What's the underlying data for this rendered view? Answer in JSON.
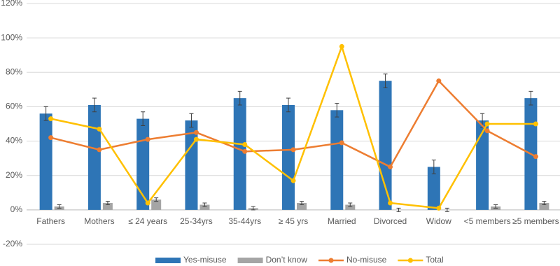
{
  "chart_data": {
    "type": "bar",
    "categories": [
      "Fathers",
      "Mothers",
      "≤ 24 years",
      "25-34yrs",
      "35-44yrs",
      "≥ 45 yrs",
      "Married",
      "Divorced",
      "Widow",
      "<5 members",
      "≥5 members"
    ],
    "series": [
      {
        "name": "Yes-misuse",
        "type": "bar",
        "color": "#2e75b6",
        "values": [
          56,
          61,
          53,
          52,
          65,
          61,
          58,
          75,
          25,
          52,
          65
        ],
        "errors": [
          4,
          4,
          4,
          4,
          4,
          4,
          4,
          4,
          4,
          4,
          4
        ]
      },
      {
        "name": "Don’t know",
        "type": "bar",
        "color": "#a5a5a5",
        "values": [
          2,
          4,
          6,
          3,
          1,
          4,
          3,
          0,
          0,
          2,
          4
        ],
        "errors": [
          1,
          1,
          1,
          1,
          1,
          1,
          1,
          1,
          1,
          1,
          1
        ]
      },
      {
        "name": "No-misuse",
        "type": "line",
        "color": "#ed7d31",
        "values": [
          42,
          35,
          41,
          45,
          34,
          35,
          39,
          25,
          75,
          46,
          31
        ]
      },
      {
        "name": "Total",
        "type": "line",
        "color": "#ffc000",
        "values": [
          53,
          47,
          4,
          41,
          38,
          17,
          95,
          4,
          1,
          50,
          50
        ]
      }
    ],
    "ylim": [
      -20,
      120
    ],
    "yticks": [
      {
        "value": -20,
        "label": "-20%"
      },
      {
        "value": 0,
        "label": "0%"
      },
      {
        "value": 20,
        "label": "20%"
      },
      {
        "value": 40,
        "label": "40%"
      },
      {
        "value": 60,
        "label": "60%"
      },
      {
        "value": 80,
        "label": "80%"
      },
      {
        "value": 100,
        "label": "100%"
      },
      {
        "value": 120,
        "label": "120%"
      }
    ],
    "grid": true,
    "legend": "bottom"
  }
}
